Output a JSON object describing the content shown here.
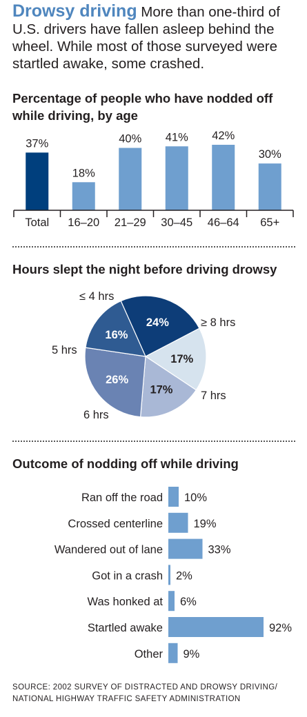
{
  "header": {
    "head": "Drowsy driving",
    "dek": "More than one-third of U.S. drivers have fallen asleep behind the wheel. While most of those surveyed were startled awake, some crashed."
  },
  "source": {
    "line1": "SOURCE: 2002 SURVEY OF DISTRACTED AND DROWSY DRIVING/",
    "line2": "NATIONAL HIGHWAY TRAFFIC SAFETY ADMINISTRATION"
  },
  "chart_data": [
    {
      "type": "bar",
      "title": "Percentage of people who have nodded off while driving, by age",
      "categories": [
        "Total",
        "16–20",
        "21–29",
        "30–45",
        "46–64",
        "65+"
      ],
      "values": [
        37,
        18,
        40,
        41,
        42,
        30
      ],
      "value_labels": [
        "37%",
        "18%",
        "40%",
        "41%",
        "42%",
        "30%"
      ],
      "ylim": [
        0,
        42
      ],
      "colors": [
        "#003f7d",
        "#6f9fcf",
        "#6f9fcf",
        "#6f9fcf",
        "#6f9fcf",
        "#6f9fcf"
      ]
    },
    {
      "type": "pie",
      "title": "Hours slept the night before driving drowsy",
      "slices": [
        {
          "label": "≤ 4 hrs",
          "value": 24,
          "value_label": "24%",
          "color": "#0d3d78",
          "text_color": "#ffffff"
        },
        {
          "label": "≥ 8 hrs",
          "value": 17,
          "value_label": "17%",
          "color": "#d6e3ee",
          "text_color": "#231f20"
        },
        {
          "label": "7 hrs",
          "value": 17,
          "value_label": "17%",
          "color": "#a9b8d6",
          "text_color": "#231f20"
        },
        {
          "label": "6 hrs",
          "value": 26,
          "value_label": "26%",
          "color": "#6a83b3",
          "text_color": "#ffffff"
        },
        {
          "label": "5 hrs",
          "value": 16,
          "value_label": "16%",
          "color": "#2f5b92",
          "text_color": "#ffffff"
        }
      ]
    },
    {
      "type": "bar",
      "orientation": "horizontal",
      "title": "Outcome of nodding off while driving",
      "categories": [
        "Ran off the road",
        "Crossed centerline",
        "Wandered out of lane",
        "Got in a crash",
        "Was honked at",
        "Startled awake",
        "Other"
      ],
      "values": [
        10,
        19,
        33,
        2,
        6,
        92,
        9
      ],
      "value_labels": [
        "10%",
        "19%",
        "33%",
        "2%",
        "6%",
        "92%",
        "9%"
      ],
      "xlim": [
        0,
        92
      ],
      "color": "#6f9fcf"
    }
  ]
}
